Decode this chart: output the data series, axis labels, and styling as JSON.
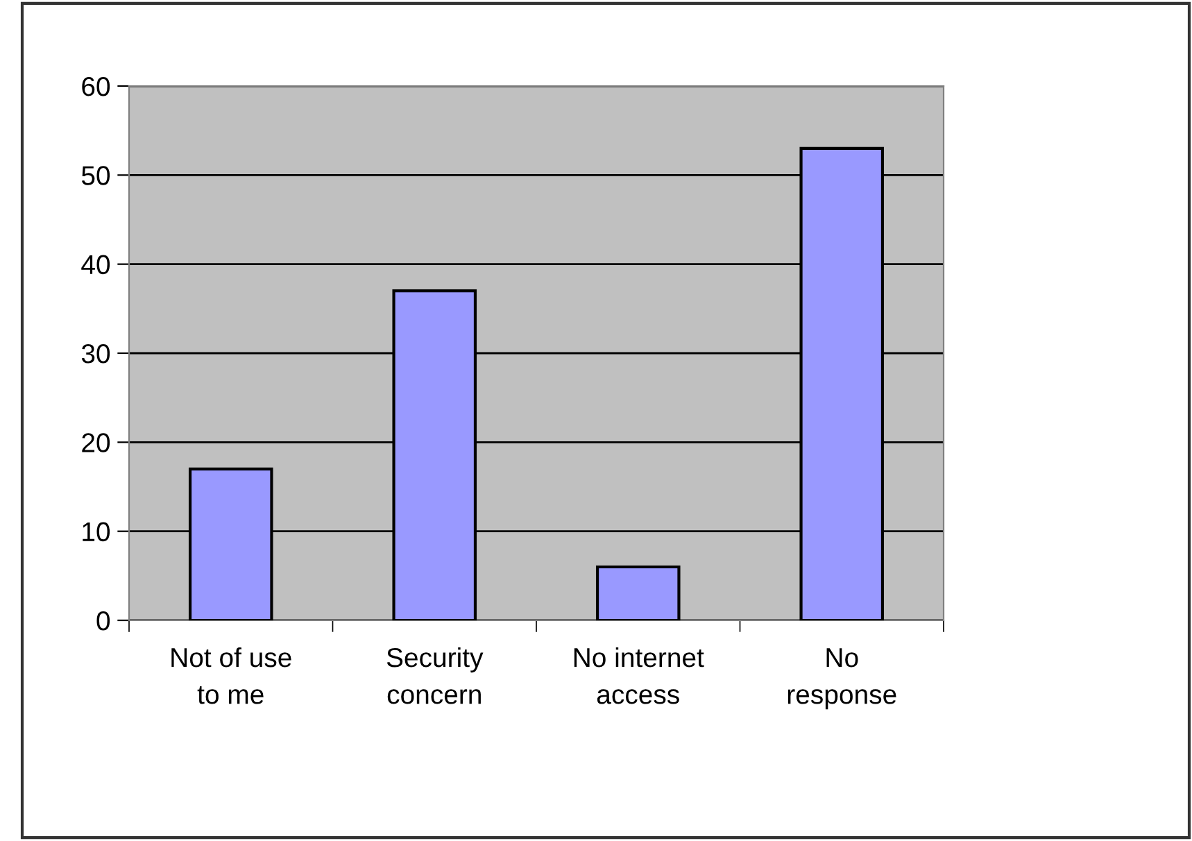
{
  "chart_data": {
    "type": "bar",
    "categories": [
      "Not of use\nto me",
      "Security\nconcern",
      "No internet\naccess",
      "No\nresponse"
    ],
    "values": [
      17,
      37,
      6,
      53
    ],
    "color": "#9999ff",
    "ylim": [
      0,
      60
    ],
    "yticks": [
      0,
      10,
      20,
      30,
      40,
      50,
      60
    ],
    "grid": "y"
  }
}
